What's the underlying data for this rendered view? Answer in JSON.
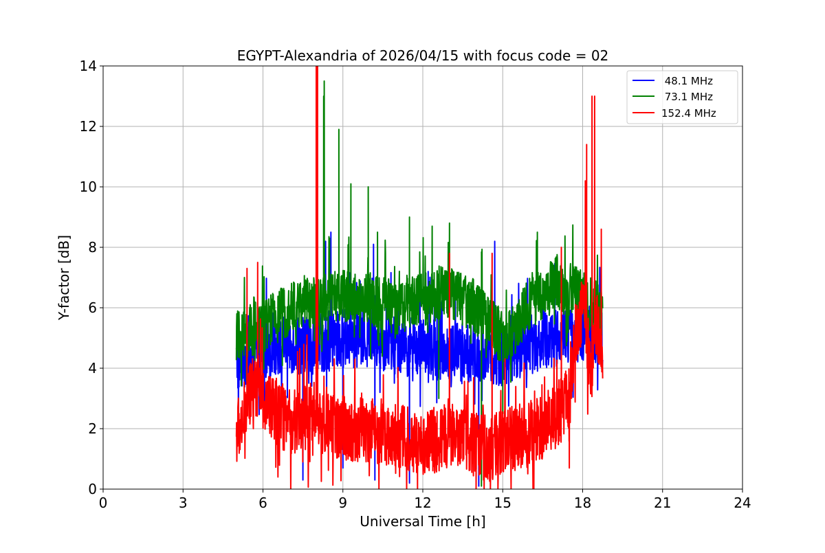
{
  "chart_data": {
    "type": "line",
    "title": "EGYPT-Alexandria of 2026/04/15 with focus code = 02",
    "xlabel": "Universal Time [h]",
    "ylabel": "Y-factor [dB]",
    "xlim": [
      0,
      24
    ],
    "ylim": [
      0,
      14
    ],
    "xticks": [
      0,
      3,
      6,
      9,
      12,
      15,
      18,
      21,
      24
    ],
    "yticks": [
      0,
      2,
      4,
      6,
      8,
      10,
      12,
      14
    ],
    "grid": true,
    "legend_position": "top-right",
    "data_start_hour": 5.0,
    "data_end_hour": 18.75,
    "series": [
      {
        "name": " 48.1 MHz",
        "color": "#0000ff",
        "baseline": [
          [
            5.0,
            4.2
          ],
          [
            6.0,
            4.6
          ],
          [
            7.0,
            4.8
          ],
          [
            8.0,
            4.8
          ],
          [
            9.0,
            5.0
          ],
          [
            10.0,
            5.0
          ],
          [
            11.0,
            4.8
          ],
          [
            12.0,
            4.6
          ],
          [
            13.0,
            4.6
          ],
          [
            14.0,
            4.5
          ],
          [
            15.0,
            4.4
          ],
          [
            16.0,
            4.8
          ],
          [
            17.0,
            5.0
          ],
          [
            18.0,
            5.2
          ],
          [
            18.75,
            5.0
          ]
        ],
        "amplitude": 1.0,
        "spikes": [
          [
            8.35,
            8.2
          ],
          [
            8.55,
            8.5
          ],
          [
            10.15,
            8.1
          ],
          [
            12.2,
            7.2
          ],
          [
            14.7,
            8.2
          ]
        ],
        "dips": [
          [
            7.5,
            0.3
          ],
          [
            9.0,
            0.7
          ],
          [
            10.2,
            0.3
          ],
          [
            11.5,
            0.2
          ],
          [
            14.1,
            0.1
          ]
        ]
      },
      {
        "name": " 73.1 MHz",
        "color": "#008000",
        "baseline": [
          [
            5.0,
            5.0
          ],
          [
            6.0,
            5.4
          ],
          [
            7.0,
            6.0
          ],
          [
            8.0,
            6.2
          ],
          [
            9.0,
            6.4
          ],
          [
            10.0,
            6.3
          ],
          [
            11.0,
            6.0
          ],
          [
            12.0,
            6.3
          ],
          [
            13.0,
            6.6
          ],
          [
            14.0,
            6.0
          ],
          [
            15.0,
            5.0
          ],
          [
            15.5,
            5.3
          ],
          [
            16.0,
            6.2
          ],
          [
            17.0,
            6.8
          ],
          [
            17.7,
            6.5
          ],
          [
            18.0,
            6.3
          ],
          [
            18.75,
            5.8
          ]
        ],
        "amplitude": 0.9,
        "spikes": [
          [
            8.3,
            13.5
          ],
          [
            8.28,
            13.0
          ],
          [
            8.5,
            8.3
          ],
          [
            8.85,
            11.9
          ],
          [
            9.3,
            10.1
          ],
          [
            9.95,
            10.0
          ],
          [
            10.3,
            8.5
          ],
          [
            11.5,
            9.0
          ],
          [
            12.35,
            8.7
          ],
          [
            13.0,
            8.8
          ],
          [
            16.3,
            8.5
          ]
        ],
        "dips": [
          [
            14.2,
            0.1
          ],
          [
            15.0,
            2.5
          ],
          [
            12.6,
            3.0
          ]
        ]
      },
      {
        "name": "152.4 MHz",
        "color": "#ff0000",
        "baseline": [
          [
            5.0,
            1.8
          ],
          [
            5.7,
            3.5
          ],
          [
            6.2,
            2.8
          ],
          [
            7.0,
            2.2
          ],
          [
            8.0,
            2.5
          ],
          [
            9.0,
            2.0
          ],
          [
            10.0,
            2.0
          ],
          [
            11.0,
            1.8
          ],
          [
            12.0,
            1.5
          ],
          [
            13.0,
            1.8
          ],
          [
            14.0,
            1.5
          ],
          [
            14.5,
            1.3
          ],
          [
            15.0,
            1.6
          ],
          [
            16.0,
            1.8
          ],
          [
            17.0,
            2.4
          ],
          [
            17.5,
            3.0
          ],
          [
            17.7,
            5.0
          ],
          [
            18.0,
            6.0
          ],
          [
            18.3,
            4.0
          ],
          [
            18.5,
            5.5
          ],
          [
            18.75,
            4.5
          ]
        ],
        "amplitude": 1.1,
        "spikes": [
          [
            5.4,
            7.3
          ],
          [
            5.8,
            7.5
          ],
          [
            8.0,
            14.0
          ],
          [
            8.05,
            14.0
          ],
          [
            13.0,
            7.8
          ],
          [
            14.6,
            7.8
          ],
          [
            17.2,
            8.0
          ],
          [
            18.15,
            11.4
          ],
          [
            18.1,
            10.2
          ],
          [
            18.35,
            13.0
          ],
          [
            18.45,
            13.0
          ],
          [
            18.7,
            8.6
          ]
        ],
        "dips": [
          [
            11.8,
            0.0
          ],
          [
            14.0,
            0.0
          ],
          [
            15.0,
            0.6
          ],
          [
            17.5,
            0.7
          ]
        ]
      }
    ]
  }
}
